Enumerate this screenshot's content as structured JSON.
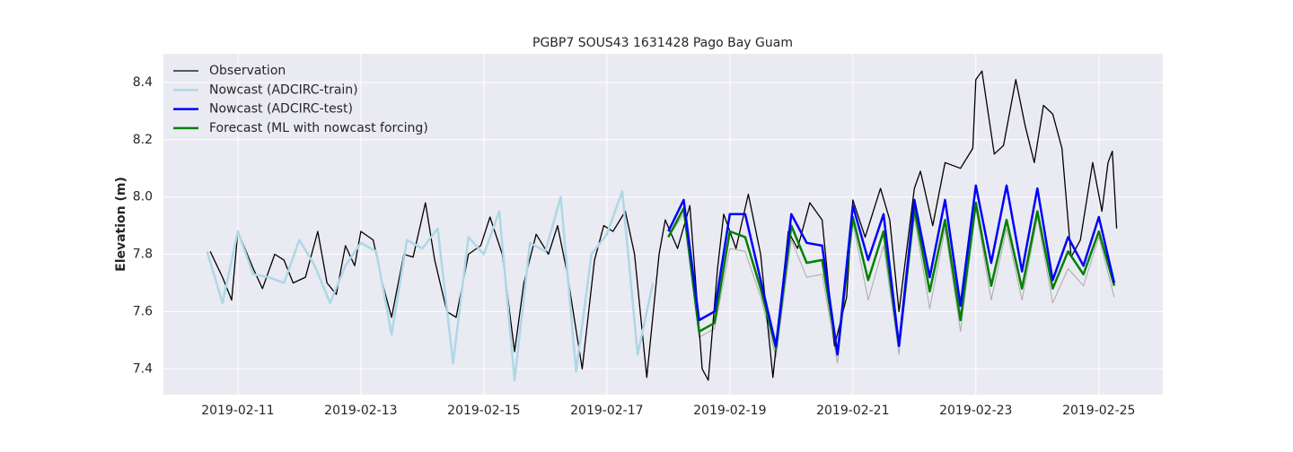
{
  "chart_data": {
    "type": "line",
    "title": "PGBP7 SOUS43 1631428 Pago Bay Guam",
    "y_label": "Elevation (m)",
    "xlim": [
      9.79,
      26.04
    ],
    "xticks": [
      {
        "value": 11,
        "label": "2019-02-11"
      },
      {
        "value": 13,
        "label": "2019-02-13"
      },
      {
        "value": 15,
        "label": "2019-02-15"
      },
      {
        "value": 17,
        "label": "2019-02-17"
      },
      {
        "value": 19,
        "label": "2019-02-19"
      },
      {
        "value": 21,
        "label": "2019-02-21"
      },
      {
        "value": 23,
        "label": "2019-02-23"
      },
      {
        "value": 25,
        "label": "2019-02-25"
      }
    ],
    "ylim": [
      7.31,
      8.5
    ],
    "yticks": [
      7.4,
      7.6,
      7.8,
      {
        "value": 8,
        "label": "8.0"
      },
      8.2,
      8.4
    ],
    "grid": true,
    "legend": "upper left",
    "series": [
      {
        "color": "#aaaaaa",
        "width": 1,
        "x": [
          18.0,
          18.25,
          18.5,
          18.75,
          19.0,
          19.25,
          19.5,
          19.75,
          20.0,
          20.25,
          20.5,
          20.75,
          21.0,
          21.25,
          21.5,
          21.75,
          22.0,
          22.25,
          22.5,
          22.75,
          23.0,
          23.25,
          23.5,
          23.75,
          24.0,
          24.25,
          24.5,
          24.75,
          25.0,
          25.25
        ],
        "values": [
          7.86,
          7.94,
          7.51,
          7.54,
          7.82,
          7.81,
          7.65,
          7.44,
          7.85,
          7.72,
          7.73,
          7.42,
          7.91,
          7.64,
          7.83,
          7.45,
          7.93,
          7.61,
          7.89,
          7.53,
          7.96,
          7.64,
          7.89,
          7.64,
          7.93,
          7.63,
          7.75,
          7.69,
          7.86,
          7.65
        ]
      },
      {
        "name": "Observation",
        "color": "#000000",
        "width": 1.3,
        "x": [
          10.55,
          10.75,
          10.9,
          11.0,
          11.25,
          11.4,
          11.6,
          11.75,
          11.9,
          12.1,
          12.3,
          12.45,
          12.6,
          12.75,
          12.9,
          13.0,
          13.2,
          13.35,
          13.5,
          13.7,
          13.85,
          14.05,
          14.2,
          14.4,
          14.55,
          14.75,
          14.95,
          15.1,
          15.3,
          15.5,
          15.65,
          15.85,
          16.05,
          16.2,
          16.35,
          16.6,
          16.8,
          16.95,
          17.1,
          17.3,
          17.45,
          17.65,
          17.85,
          17.95,
          18.15,
          18.35,
          18.55,
          18.65,
          18.8,
          18.9,
          19.1,
          19.3,
          19.5,
          19.7,
          19.95,
          20.1,
          20.3,
          20.5,
          20.7,
          20.9,
          21.0,
          21.2,
          21.45,
          21.6,
          21.75,
          22.0,
          22.1,
          22.3,
          22.5,
          22.75,
          22.95,
          23.0,
          23.1,
          23.3,
          23.45,
          23.65,
          23.8,
          23.95,
          24.1,
          24.25,
          24.4,
          24.55,
          24.7,
          24.9,
          25.05,
          25.15,
          25.22,
          25.29
        ],
        "values": [
          7.81,
          7.72,
          7.64,
          7.88,
          7.75,
          7.68,
          7.8,
          7.78,
          7.7,
          7.72,
          7.88,
          7.7,
          7.66,
          7.83,
          7.76,
          7.88,
          7.85,
          7.7,
          7.58,
          7.8,
          7.79,
          7.98,
          7.78,
          7.6,
          7.58,
          7.8,
          7.83,
          7.93,
          7.8,
          7.46,
          7.7,
          7.87,
          7.8,
          7.9,
          7.74,
          7.4,
          7.78,
          7.9,
          7.88,
          7.95,
          7.8,
          7.37,
          7.8,
          7.92,
          7.82,
          7.97,
          7.4,
          7.36,
          7.75,
          7.94,
          7.82,
          8.01,
          7.8,
          7.37,
          7.88,
          7.82,
          7.98,
          7.92,
          7.48,
          7.65,
          7.99,
          7.86,
          8.03,
          7.92,
          7.6,
          8.03,
          8.09,
          7.9,
          8.12,
          8.1,
          8.17,
          8.41,
          8.44,
          8.15,
          8.18,
          8.41,
          8.25,
          8.12,
          8.32,
          8.29,
          8.17,
          7.79,
          7.85,
          8.12,
          7.95,
          8.12,
          8.16,
          7.89
        ]
      },
      {
        "name": "Nowcast (ADCIRC-train)",
        "color": "#add8e6",
        "width": 2.5,
        "x": [
          10.5,
          10.75,
          11.0,
          11.25,
          11.5,
          11.75,
          12.0,
          12.25,
          12.5,
          12.75,
          13.0,
          13.25,
          13.5,
          13.75,
          14.0,
          14.25,
          14.5,
          14.75,
          15.0,
          15.25,
          15.5,
          15.75,
          16.0,
          16.25,
          16.5,
          16.75,
          17.0,
          17.25,
          17.5,
          17.75
        ],
        "values": [
          7.81,
          7.63,
          7.88,
          7.73,
          7.72,
          7.7,
          7.85,
          7.76,
          7.63,
          7.76,
          7.84,
          7.81,
          7.52,
          7.85,
          7.82,
          7.89,
          7.42,
          7.86,
          7.8,
          7.95,
          7.36,
          7.84,
          7.81,
          8.0,
          7.39,
          7.8,
          7.87,
          8.02,
          7.45,
          7.7
        ]
      },
      {
        "name": "Forecast (ML with nowcast forcing)",
        "color": "#008000",
        "width": 2.5,
        "x": [
          18.0,
          18.25,
          18.5,
          18.75,
          19.0,
          19.25,
          19.5,
          19.75,
          20.0,
          20.25,
          20.5,
          20.75,
          21.0,
          21.25,
          21.5,
          21.75,
          22.0,
          22.25,
          22.5,
          22.75,
          23.0,
          23.25,
          23.5,
          23.75,
          24.0,
          24.25,
          24.5,
          24.75,
          25.0,
          25.25
        ],
        "values": [
          7.86,
          7.96,
          7.53,
          7.56,
          7.88,
          7.86,
          7.68,
          7.47,
          7.9,
          7.77,
          7.78,
          7.45,
          7.93,
          7.71,
          7.88,
          7.48,
          7.96,
          7.67,
          7.92,
          7.57,
          7.98,
          7.69,
          7.92,
          7.68,
          7.95,
          7.68,
          7.81,
          7.73,
          7.88,
          7.69
        ]
      },
      {
        "name": "Nowcast (ADCIRC-test)",
        "color": "#0000ff",
        "width": 2.5,
        "x": [
          18.0,
          18.25,
          18.5,
          18.75,
          19.0,
          19.25,
          19.5,
          19.75,
          20.0,
          20.25,
          20.5,
          20.75,
          21.0,
          21.25,
          21.5,
          21.75,
          22.0,
          22.25,
          22.5,
          22.75,
          23.0,
          23.25,
          23.5,
          23.75,
          24.0,
          24.25,
          24.5,
          24.75,
          25.0,
          25.25
        ],
        "values": [
          7.88,
          7.99,
          7.57,
          7.6,
          7.94,
          7.94,
          7.71,
          7.48,
          7.94,
          7.84,
          7.83,
          7.45,
          7.97,
          7.78,
          7.94,
          7.48,
          7.99,
          7.72,
          7.99,
          7.62,
          8.04,
          7.77,
          8.04,
          7.74,
          8.03,
          7.71,
          7.86,
          7.76,
          7.93,
          7.7
        ]
      }
    ],
    "legend_order": [
      "Observation",
      "Nowcast (ADCIRC-train)",
      "Nowcast (ADCIRC-test)",
      "Forecast (ML with nowcast forcing)"
    ]
  }
}
